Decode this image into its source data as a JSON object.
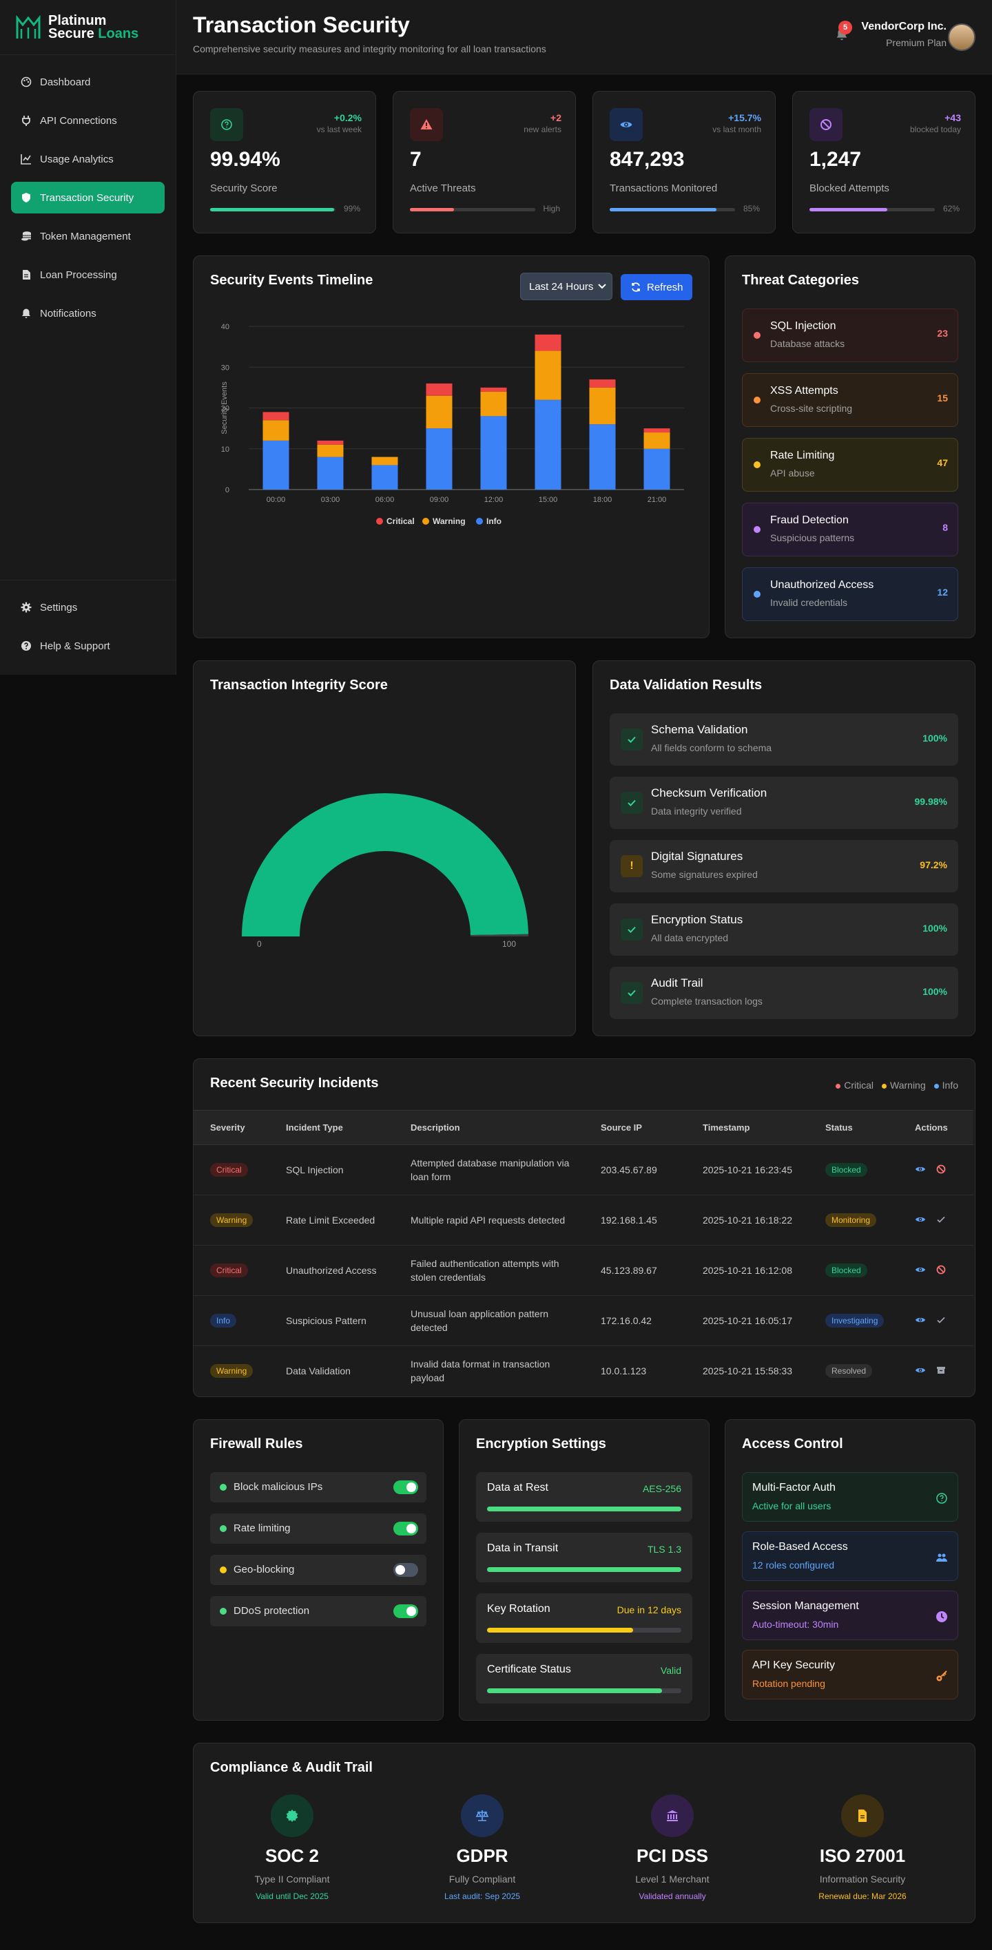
{
  "brand": {
    "line1": "Platinum",
    "line2a": "Secure",
    "line2b": "Loans"
  },
  "nav": [
    {
      "label": "Dashboard",
      "icon": "palette-icon"
    },
    {
      "label": "API Connections",
      "icon": "plug-icon"
    },
    {
      "label": "Usage Analytics",
      "icon": "chart-line-icon"
    },
    {
      "label": "Transaction Security",
      "icon": "shield-icon",
      "active": true
    },
    {
      "label": "Token Management",
      "icon": "coins-icon"
    },
    {
      "label": "Loan Processing",
      "icon": "file-icon"
    },
    {
      "label": "Notifications",
      "icon": "bell-icon"
    }
  ],
  "nav_bottom": [
    {
      "label": "Settings",
      "icon": "gear-icon"
    },
    {
      "label": "Help & Support",
      "icon": "question-icon"
    }
  ],
  "header": {
    "title": "Transaction Security",
    "subtitle": "Comprehensive security measures and integrity monitoring for all loan transactions",
    "notifications": "5",
    "user_name": "VendorCorp Inc.",
    "user_plan": "Premium Plan"
  },
  "stats": [
    {
      "change": "+0.2%",
      "change_sub": "vs last week",
      "value": "99.94%",
      "label": "Security Score",
      "bar_label": "99%",
      "fraction": 0.99,
      "color": "#34d399",
      "icon": "shield-check-icon"
    },
    {
      "change": "+2",
      "change_sub": "new alerts",
      "value": "7",
      "label": "Active Threats",
      "bar_label": "High",
      "fraction": 0.35,
      "color": "#f87171",
      "icon": "warning-icon"
    },
    {
      "change": "+15.7%",
      "change_sub": "vs last month",
      "value": "847,293",
      "label": "Transactions Monitored",
      "bar_label": "85%",
      "fraction": 0.85,
      "color": "#60a5fa",
      "icon": "eye-icon"
    },
    {
      "change": "+43",
      "change_sub": "blocked today",
      "value": "1,247",
      "label": "Blocked Attempts",
      "bar_label": "62%",
      "fraction": 0.62,
      "color": "#c084fc",
      "icon": "ban-icon"
    }
  ],
  "timeline": {
    "title": "Security Events Timeline",
    "select": "Last 24 Hours",
    "refresh": "Refresh"
  },
  "chart_data": {
    "type": "bar",
    "stacked": true,
    "categories": [
      "00:00",
      "03:00",
      "06:00",
      "09:00",
      "12:00",
      "15:00",
      "18:00",
      "21:00"
    ],
    "series": [
      {
        "name": "Info",
        "color": "#3b82f6",
        "values": [
          12,
          8,
          6,
          15,
          18,
          22,
          16,
          10
        ]
      },
      {
        "name": "Warning",
        "color": "#f59e0b",
        "values": [
          5,
          3,
          2,
          8,
          6,
          12,
          9,
          4
        ]
      },
      {
        "name": "Critical",
        "color": "#ef4444",
        "values": [
          2,
          1,
          0,
          3,
          1,
          4,
          2,
          1
        ]
      }
    ],
    "legend": [
      "Critical",
      "Warning",
      "Info"
    ],
    "ylabel": "Security Events",
    "ylim": [
      0,
      40
    ],
    "yticks": [
      0,
      10,
      20,
      30,
      40
    ],
    "grid": true
  },
  "threats": {
    "title": "Threat Categories",
    "items": [
      {
        "name": "SQL Injection",
        "sub": "Database attacks",
        "count": "23",
        "color": "#f87171",
        "bg": "#2a1b1b",
        "border": "#4a2424"
      },
      {
        "name": "XSS Attempts",
        "sub": "Cross-site scripting",
        "count": "15",
        "color": "#fb923c",
        "bg": "#2a2016",
        "border": "#4a3420"
      },
      {
        "name": "Rate Limiting",
        "sub": "API abuse",
        "count": "47",
        "color": "#fbbf24",
        "bg": "#2a2614",
        "border": "#4a4020"
      },
      {
        "name": "Fraud Detection",
        "sub": "Suspicious patterns",
        "count": "8",
        "color": "#c084fc",
        "bg": "#251b2e",
        "border": "#3f2a4e"
      },
      {
        "name": "Unauthorized Access",
        "sub": "Invalid credentials",
        "count": "12",
        "color": "#60a5fa",
        "bg": "#1a2232",
        "border": "#283a55"
      }
    ]
  },
  "integrity": {
    "title": "Transaction Integrity Score",
    "min": "0",
    "max": "100",
    "score": 99.5
  },
  "validation": {
    "title": "Data Validation Results",
    "items": [
      {
        "name": "Schema Validation",
        "sub": "All fields conform to schema",
        "pct": "100%",
        "status": "ok"
      },
      {
        "name": "Checksum Verification",
        "sub": "Data integrity verified",
        "pct": "99.98%",
        "status": "ok"
      },
      {
        "name": "Digital Signatures",
        "sub": "Some signatures expired",
        "pct": "97.2%",
        "status": "warn"
      },
      {
        "name": "Encryption Status",
        "sub": "All data encrypted",
        "pct": "100%",
        "status": "ok"
      },
      {
        "name": "Audit Trail",
        "sub": "Complete transaction logs",
        "pct": "100%",
        "status": "ok"
      }
    ]
  },
  "incidents": {
    "title": "Recent Security Incidents",
    "legend": [
      "Critical",
      "Warning",
      "Info"
    ],
    "columns": [
      "Severity",
      "Incident Type",
      "Description",
      "Source IP",
      "Timestamp",
      "Status",
      "Actions"
    ],
    "rows": [
      {
        "severity": "Critical",
        "type": "SQL Injection",
        "desc": "Attempted database manipulation via loan form",
        "ip": "203.45.67.89",
        "time": "2025-10-21 16:23:45",
        "status": "Blocked",
        "action2": "ban"
      },
      {
        "severity": "Warning",
        "type": "Rate Limit Exceeded",
        "desc": "Multiple rapid API requests detected",
        "ip": "192.168.1.45",
        "time": "2025-10-21 16:18:22",
        "status": "Monitoring",
        "action2": "check"
      },
      {
        "severity": "Critical",
        "type": "Unauthorized Access",
        "desc": "Failed authentication attempts with stolen credentials",
        "ip": "45.123.89.67",
        "time": "2025-10-21 16:12:08",
        "status": "Blocked",
        "action2": "ban"
      },
      {
        "severity": "Info",
        "type": "Suspicious Pattern",
        "desc": "Unusual loan application pattern detected",
        "ip": "172.16.0.42",
        "time": "2025-10-21 16:05:17",
        "status": "Investigating",
        "action2": "check"
      },
      {
        "severity": "Warning",
        "type": "Data Validation",
        "desc": "Invalid data format in transaction payload",
        "ip": "10.0.1.123",
        "time": "2025-10-21 15:58:33",
        "status": "Resolved",
        "action2": "archive"
      }
    ]
  },
  "firewall": {
    "title": "Firewall Rules",
    "items": [
      {
        "name": "Block malicious IPs",
        "dot": "#4ade80",
        "on": true
      },
      {
        "name": "Rate limiting",
        "dot": "#4ade80",
        "on": true
      },
      {
        "name": "Geo-blocking",
        "dot": "#facc15",
        "on": false
      },
      {
        "name": "DDoS protection",
        "dot": "#4ade80",
        "on": true
      }
    ]
  },
  "encryption": {
    "title": "Encryption Settings",
    "items": [
      {
        "name": "Data at Rest",
        "value": "AES-256",
        "fraction": 1.0,
        "color": "#4ade80"
      },
      {
        "name": "Data in Transit",
        "value": "TLS 1.3",
        "fraction": 1.0,
        "color": "#4ade80"
      },
      {
        "name": "Key Rotation",
        "value": "Due in 12 days",
        "fraction": 0.75,
        "color": "#facc15"
      },
      {
        "name": "Certificate Status",
        "value": "Valid",
        "fraction": 0.9,
        "color": "#4ade80"
      }
    ]
  },
  "access": {
    "title": "Access Control",
    "items": [
      {
        "name": "Multi-Factor Auth",
        "sub": "Active for all users",
        "color": "#34d399",
        "bg": "#16261f",
        "border": "#1f3d30",
        "icon": "shield-check-icon"
      },
      {
        "name": "Role-Based Access",
        "sub": "12 roles configured",
        "color": "#60a5fa",
        "bg": "#18202e",
        "border": "#243550",
        "icon": "users-icon"
      },
      {
        "name": "Session Management",
        "sub": "Auto-timeout: 30min",
        "color": "#c084fc",
        "bg": "#231b2c",
        "border": "#3a2a4d",
        "icon": "clock-icon"
      },
      {
        "name": "API Key Security",
        "sub": "Rotation pending",
        "color": "#fb923c",
        "bg": "#2a1f17",
        "border": "#4a3020",
        "icon": "key-icon"
      }
    ]
  },
  "compliance": {
    "title": "Compliance & Audit Trail",
    "items": [
      {
        "name": "SOC 2",
        "desc": "Type II Compliant",
        "status": "Valid until Dec 2025",
        "color": "#34d399",
        "bg": "#123a2b",
        "icon": "certificate-icon"
      },
      {
        "name": "GDPR",
        "desc": "Fully Compliant",
        "status": "Last audit: Sep 2025",
        "color": "#60a5fa",
        "bg": "#1e2f55",
        "icon": "scale-icon"
      },
      {
        "name": "PCI DSS",
        "desc": "Level 1 Merchant",
        "status": "Validated annually",
        "color": "#c084fc",
        "bg": "#33204a",
        "icon": "bank-icon"
      },
      {
        "name": "ISO 27001",
        "desc": "Information Security",
        "status": "Renewal due: Mar 2026",
        "color": "#fbbf24",
        "bg": "#3d3012",
        "icon": "document-icon"
      }
    ]
  }
}
